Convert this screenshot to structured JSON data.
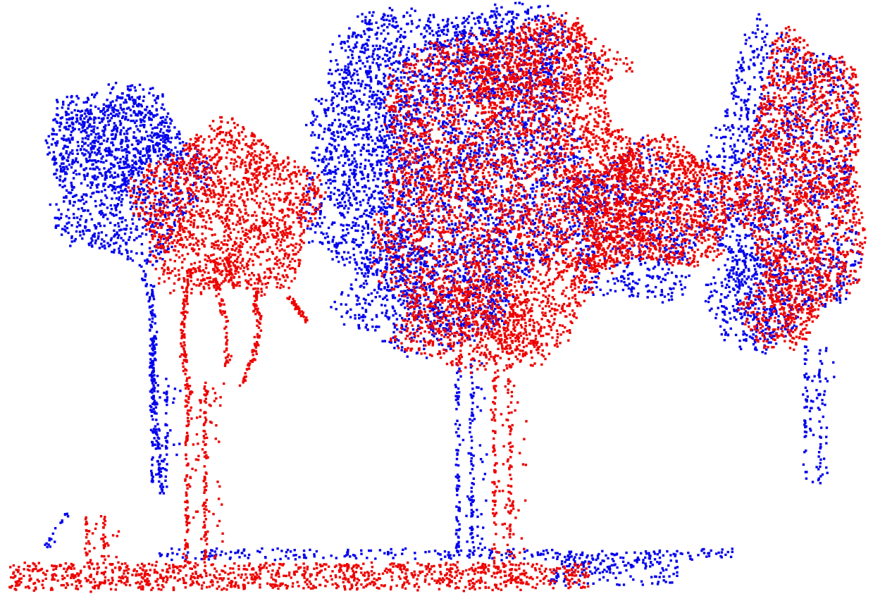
{
  "scene": {
    "kind": "point-cloud",
    "content": "trees",
    "background": "#ffffff",
    "clouds": [
      {
        "id": "source",
        "color": "#0000ee"
      },
      {
        "id": "target",
        "color": "#ee0000"
      }
    ],
    "trees_visible": 5,
    "ground_plane_visible": true
  }
}
